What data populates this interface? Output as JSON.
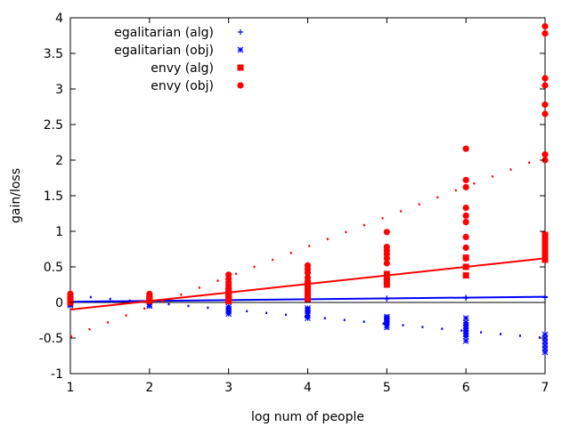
{
  "chart_data": {
    "type": "scatter",
    "xlabel": "log num of people",
    "ylabel": "gain/loss",
    "xlim": [
      1,
      7
    ],
    "ylim": [
      -1,
      4
    ],
    "xticks": [
      "1",
      "2",
      "3",
      "4",
      "5",
      "6",
      "7"
    ],
    "yticks": [
      "-1",
      "-0.5",
      "0",
      "0.5",
      "1",
      "1.5",
      "2",
      "2.5",
      "3",
      "3.5",
      "4"
    ],
    "legend_position": "top-left",
    "series": [
      {
        "name": "egalitarian (alg)",
        "color": "#0000ff",
        "marker": "plus",
        "x": [
          1,
          2,
          3,
          3,
          4,
          4,
          5,
          5,
          6,
          6,
          7,
          7
        ],
        "y": [
          0.0,
          0.0,
          0.02,
          0.03,
          0.04,
          0.05,
          0.05,
          0.06,
          0.06,
          0.07,
          0.07,
          0.08
        ]
      },
      {
        "name": "egalitarian (obj)",
        "color": "#0000ff",
        "marker": "star",
        "x": [
          1,
          1,
          2,
          2,
          3,
          3,
          3,
          3,
          3,
          4,
          4,
          4,
          4,
          4,
          4,
          5,
          5,
          5,
          5,
          5,
          5,
          5,
          6,
          6,
          6,
          6,
          6,
          6,
          6,
          6,
          7,
          7,
          7,
          7,
          7,
          7
        ],
        "y": [
          -0.02,
          -0.04,
          -0.03,
          -0.05,
          -0.06,
          -0.09,
          -0.11,
          -0.13,
          -0.16,
          -0.08,
          -0.1,
          -0.12,
          -0.15,
          -0.18,
          -0.22,
          -0.2,
          -0.22,
          -0.24,
          -0.26,
          -0.28,
          -0.32,
          -0.35,
          -0.22,
          -0.28,
          -0.32,
          -0.36,
          -0.4,
          -0.44,
          -0.48,
          -0.54,
          -0.45,
          -0.5,
          -0.55,
          -0.6,
          -0.65,
          -0.7
        ]
      },
      {
        "name": "envy (alg)",
        "color": "#ff0000",
        "marker": "square",
        "x": [
          1,
          1,
          2,
          2,
          3,
          3,
          3,
          3,
          3,
          3,
          4,
          4,
          4,
          4,
          4,
          5,
          5,
          5,
          5,
          6,
          6,
          6,
          7,
          7,
          7,
          7,
          7,
          7,
          7,
          7
        ],
        "y": [
          0.0,
          0.03,
          0.02,
          0.05,
          0.02,
          0.05,
          0.08,
          0.11,
          0.14,
          0.17,
          0.05,
          0.1,
          0.15,
          0.2,
          0.25,
          0.25,
          0.3,
          0.35,
          0.4,
          0.38,
          0.5,
          0.63,
          0.6,
          0.65,
          0.7,
          0.75,
          0.8,
          0.85,
          0.9,
          0.95
        ]
      },
      {
        "name": "envy (obj)",
        "color": "#ff0000",
        "marker": "circle",
        "x": [
          1,
          1,
          1,
          2,
          2,
          2,
          3,
          3,
          3,
          3,
          3,
          3,
          4,
          4,
          4,
          4,
          4,
          4,
          5,
          5,
          5,
          5,
          5,
          5,
          6,
          6,
          6,
          6,
          6,
          6,
          6,
          6,
          6,
          7,
          7,
          7,
          7,
          7,
          7,
          7,
          7
        ],
        "y": [
          0.05,
          0.08,
          0.12,
          0.06,
          0.09,
          0.12,
          0.15,
          0.2,
          0.24,
          0.28,
          0.33,
          0.39,
          0.3,
          0.35,
          0.42,
          0.47,
          0.52,
          0.15,
          0.55,
          0.62,
          0.68,
          0.73,
          0.78,
          0.99,
          0.62,
          0.77,
          0.92,
          1.13,
          1.22,
          1.33,
          1.62,
          1.72,
          2.16,
          2.0,
          2.08,
          2.65,
          2.78,
          3.05,
          3.15,
          3.78,
          3.88
        ]
      }
    ],
    "fit_lines": [
      {
        "series": "egalitarian (alg)",
        "style": "solid",
        "color": "#0000ff",
        "x": [
          1,
          7
        ],
        "y": [
          0.01,
          0.08
        ]
      },
      {
        "series": "egalitarian (obj)",
        "style": "dotted",
        "color": "#0000ff",
        "x": [
          1,
          7
        ],
        "y": [
          0.1,
          -0.5
        ]
      },
      {
        "series": "envy (alg)",
        "style": "solid",
        "color": "#ff0000",
        "x": [
          1,
          7
        ],
        "y": [
          -0.1,
          0.62
        ]
      },
      {
        "series": "envy (obj)",
        "style": "dotted",
        "color": "#ff0000",
        "x": [
          1,
          7
        ],
        "y": [
          -0.48,
          2.05
        ]
      }
    ]
  }
}
